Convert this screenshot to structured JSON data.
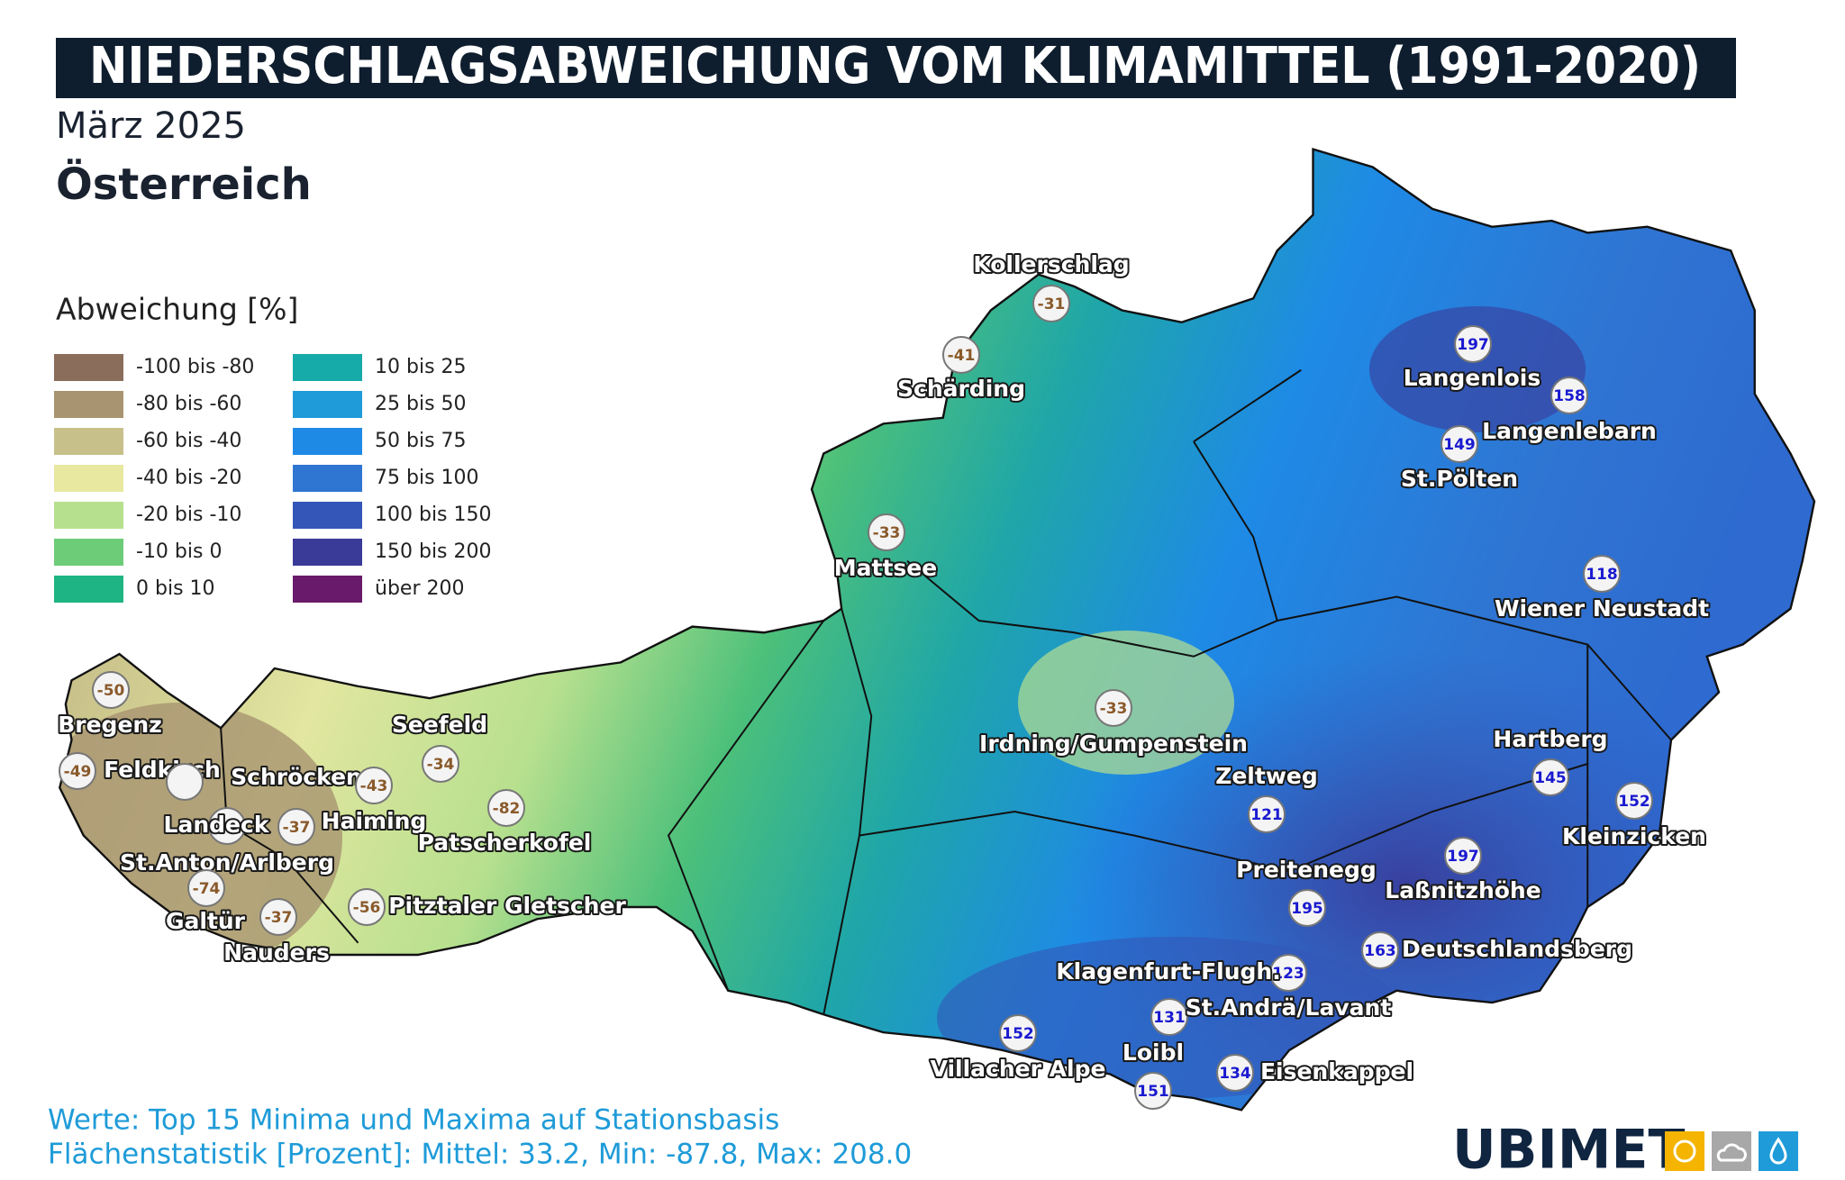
{
  "header": {
    "title": "NIEDERSCHLAGSABWEICHUNG VOM KLIMAMITTEL (1991-2020)",
    "subtitle": "März 2025",
    "region": "Österreich"
  },
  "legend": {
    "title": "Abweichung [%]",
    "items": [
      {
        "label": "-100 bis -80",
        "color": "#8b6d5c"
      },
      {
        "label": "-80 bis -60",
        "color": "#a89470"
      },
      {
        "label": "-60 bis -40",
        "color": "#c8c08a"
      },
      {
        "label": "-40 bis -20",
        "color": "#e8e8a0"
      },
      {
        "label": "-20 bis -10",
        "color": "#b7e08e"
      },
      {
        "label": "-10 bis 0",
        "color": "#6dcc78"
      },
      {
        "label": "0 bis 10",
        "color": "#1fb483"
      },
      {
        "label": "10 bis 25",
        "color": "#16aaa9"
      },
      {
        "label": "25 bis 50",
        "color": "#1e9bd8"
      },
      {
        "label": "50 bis 75",
        "color": "#1e8ae6"
      },
      {
        "label": "75 bis 100",
        "color": "#2f75d2"
      },
      {
        "label": "100 bis 150",
        "color": "#3456b8"
      },
      {
        "label": "150 bis 200",
        "color": "#3a3a99"
      },
      {
        "label": "über 200",
        "color": "#6a1a6a"
      }
    ]
  },
  "stations": [
    {
      "name": "Kollerschlag",
      "value": -31
    },
    {
      "name": "Schärding",
      "value": -41
    },
    {
      "name": "Mattsee",
      "value": -33
    },
    {
      "name": "Bregenz",
      "value": -50
    },
    {
      "name": "Feldkirch",
      "value": -49
    },
    {
      "name": "Schröcken"
    },
    {
      "name": "Haiming",
      "value": -43
    },
    {
      "name": "Seefeld",
      "value": -34
    },
    {
      "name": "Patscherkofel",
      "value": -82
    },
    {
      "name": "Landeck"
    },
    {
      "name": "St.Anton/Arlberg",
      "value": -37
    },
    {
      "name": "Galtür",
      "value": -74
    },
    {
      "name": "Nauders",
      "value": -37
    },
    {
      "name": "Pitztaler Gletscher",
      "value": -56
    },
    {
      "name": "Irdning/Gumpenstein",
      "value": -33
    },
    {
      "name": "Langenlois",
      "value": 197
    },
    {
      "name": "Langenlebarn",
      "value": 158
    },
    {
      "name": "St.Pölten",
      "value": 149
    },
    {
      "name": "Wiener Neustadt",
      "value": 118
    },
    {
      "name": "Hartberg",
      "value": 145
    },
    {
      "name": "Kleinzicken",
      "value": 152
    },
    {
      "name": "Zeltweg",
      "value": 121
    },
    {
      "name": "Laßnitzhöhe",
      "value": 197
    },
    {
      "name": "Preitenegg",
      "value": 195
    },
    {
      "name": "Deutschlandsberg",
      "value": 163
    },
    {
      "name": "Klagenfurt-Flugh.",
      "value": 123
    },
    {
      "name": "St.Andrä/Lavant",
      "value": 131
    },
    {
      "name": "Villacher Alpe",
      "value": 152
    },
    {
      "name": "Loibl",
      "value": 151
    },
    {
      "name": "Eisenkappel",
      "value": 134
    }
  ],
  "footer": {
    "line1": "Werte: Top 15 Minima und Maxima auf Stationsbasis",
    "line2": "Flächenstatistik [Prozent]: Mittel: 33.2, Min: -87.8, Max: 208.0",
    "logo": "UBIMET"
  }
}
